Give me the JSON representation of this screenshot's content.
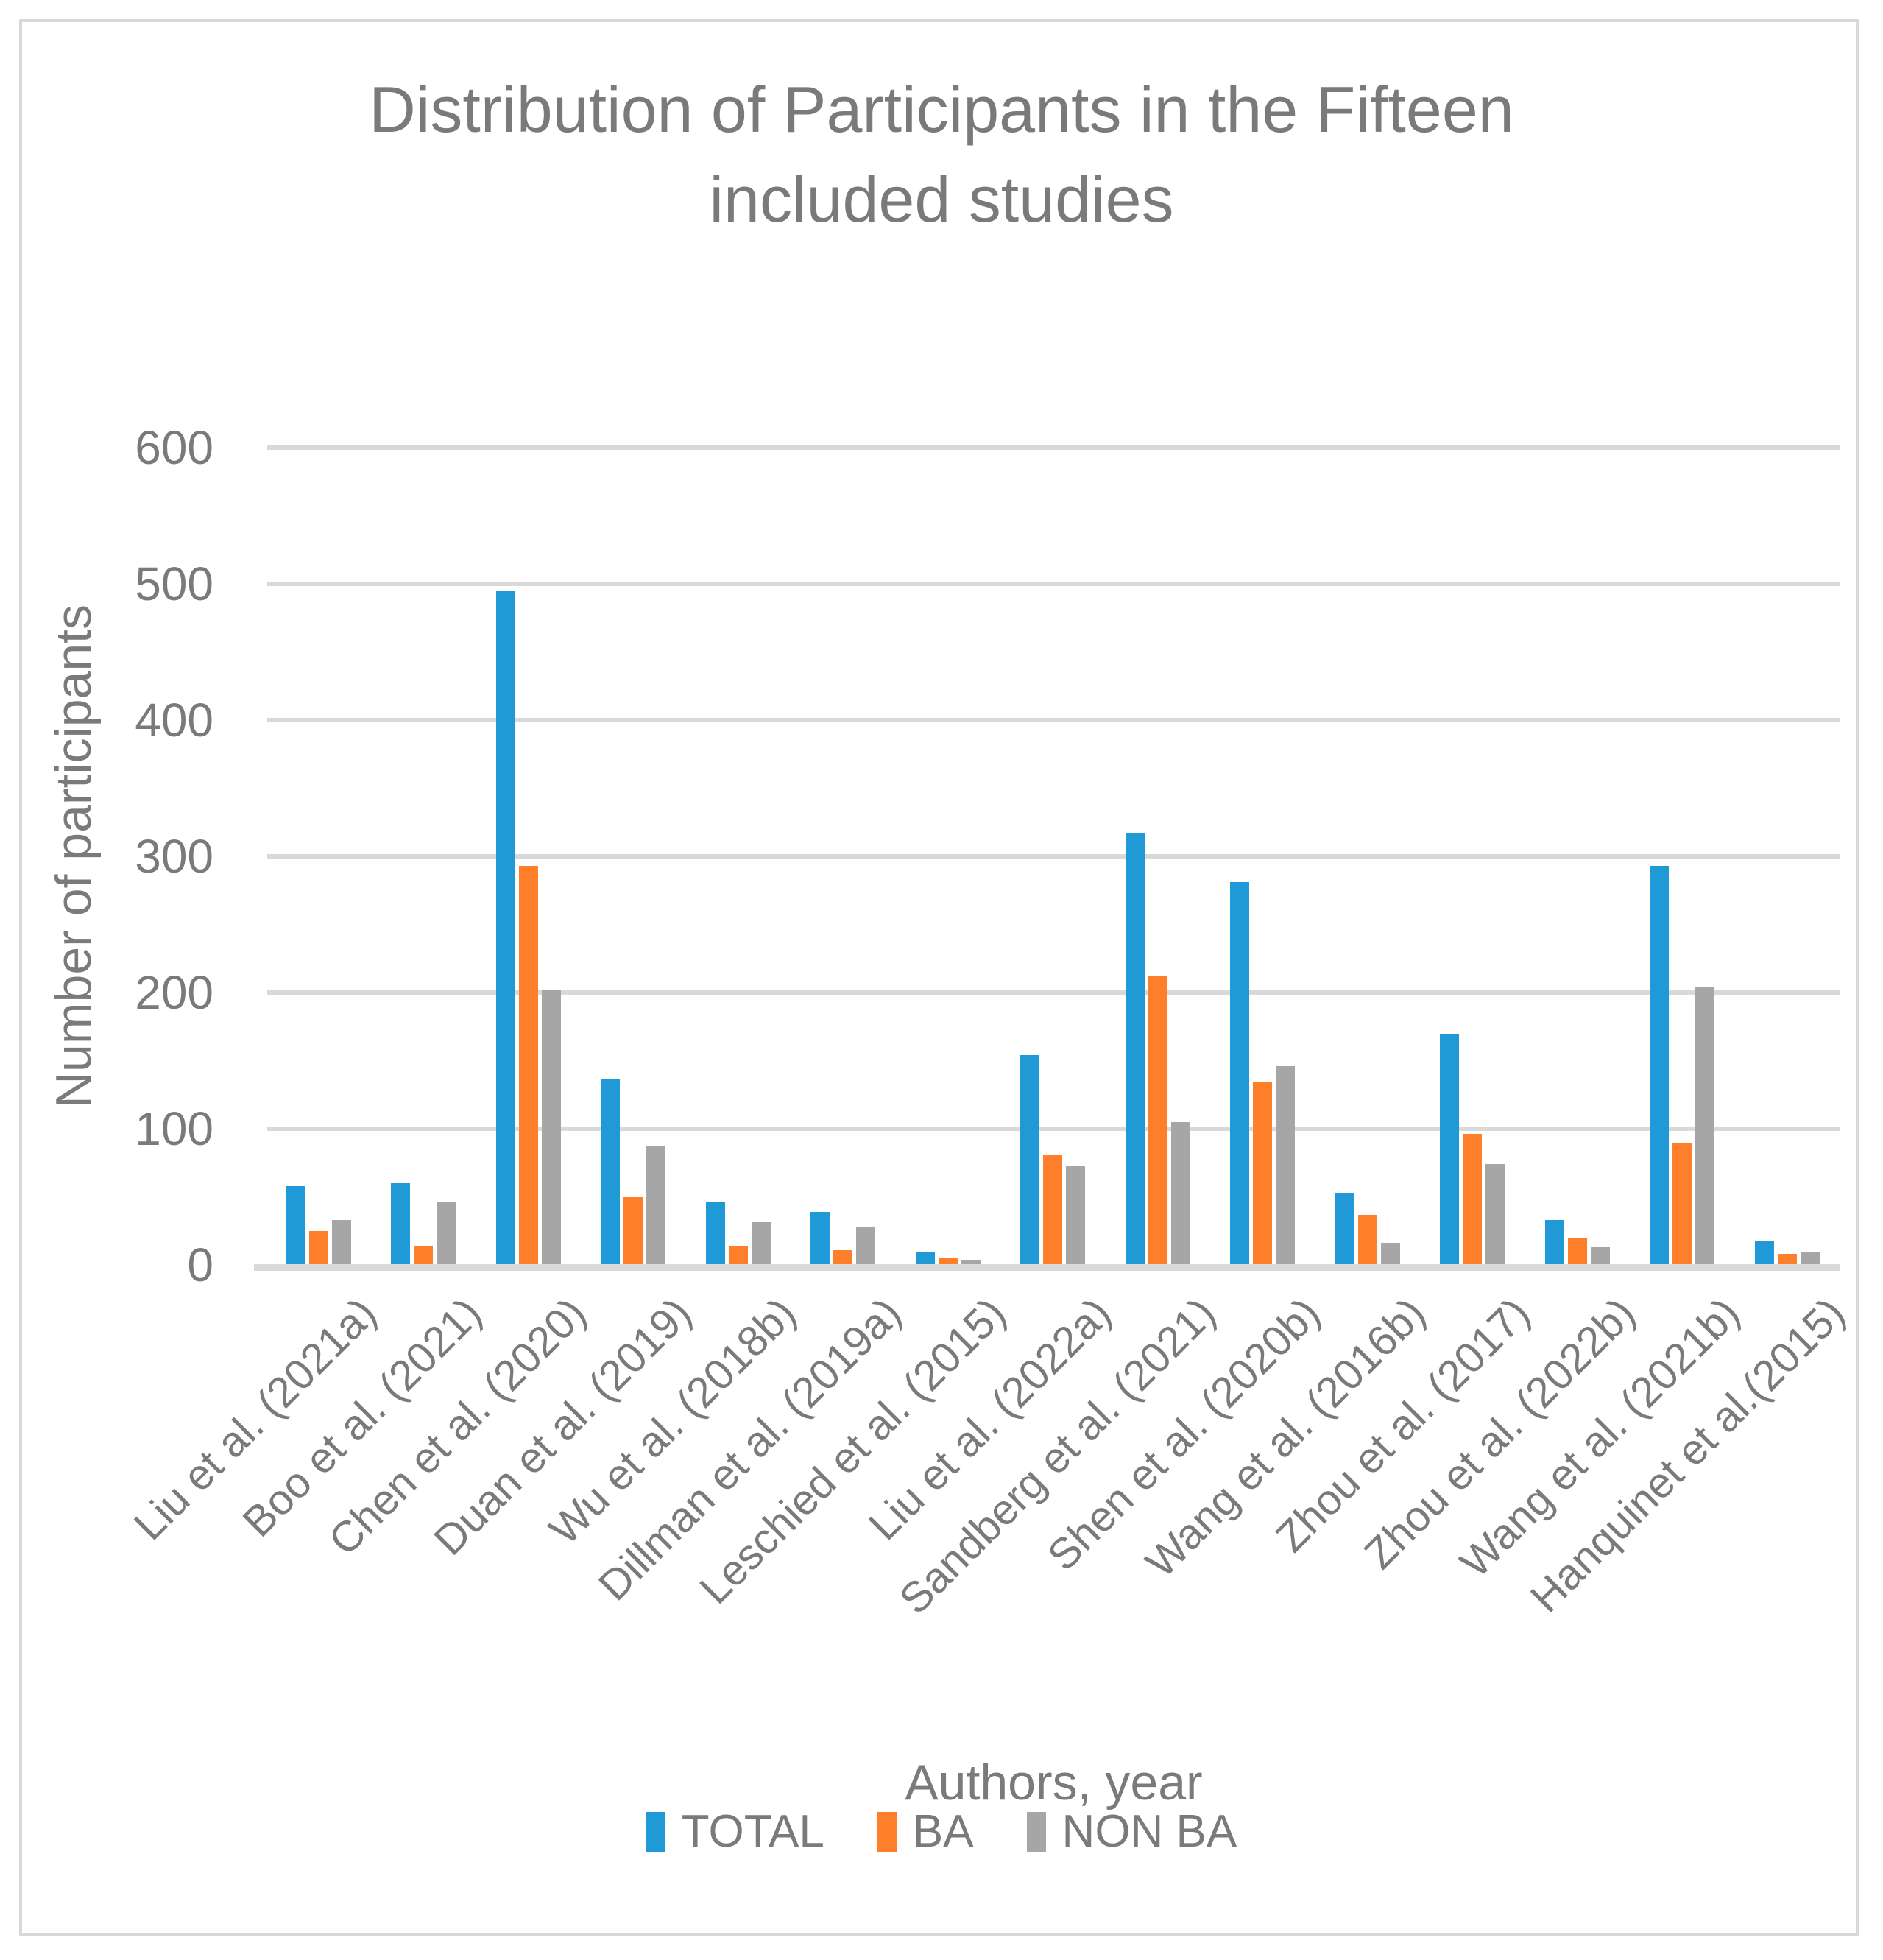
{
  "chart_data": {
    "type": "bar",
    "title": "Distribution of Participants in the Fifteen included studies",
    "title_lines": [
      "Distribution of Participants in the Fifteen",
      "included studies"
    ],
    "xlabel": "Authors, year",
    "ylabel": "Number of participants",
    "ylim": [
      0,
      600
    ],
    "ytick_interval": 100,
    "yticks": [
      600,
      500,
      400,
      300,
      200,
      100,
      0
    ],
    "grid": true,
    "legend_position": "bottom",
    "categories": [
      "Liu et al. (2021a)",
      "Boo et al. (2021)",
      "Chen et al. (2020)",
      "Duan et al. (2019)",
      "Wu et al. (2018b)",
      "Dillman et al. (2019a)",
      "Leschied et al. (2015)",
      "Liu et al. (2022a)",
      "Sandberg et al. (2021)",
      "Shen et al. (2020b)",
      "Wang et al. (2016b)",
      "Zhou et al. (2017)",
      "Zhou et al. (2022b)",
      "Wang et al. (2021b)",
      "Hanquinet et al.(2015)"
    ],
    "series": [
      {
        "name": "TOTAL",
        "color": "#209AD6",
        "values": [
          58,
          60,
          495,
          137,
          46,
          39,
          10,
          154,
          317,
          281,
          53,
          170,
          33,
          293,
          18
        ]
      },
      {
        "name": "BA",
        "color": "#FF7E29",
        "values": [
          25,
          14,
          293,
          50,
          14,
          11,
          5,
          81,
          212,
          134,
          37,
          96,
          20,
          89,
          8
        ]
      },
      {
        "name": "NON BA",
        "color": "#A6A6A6",
        "values": [
          33,
          46,
          202,
          87,
          32,
          28,
          4,
          73,
          105,
          146,
          16,
          74,
          13,
          204,
          9
        ]
      }
    ],
    "colors": {
      "gridline": "#d9d9d9",
      "axis_line": "#d9d9d9",
      "text": "#7a7a7a",
      "background": "#ffffff",
      "frame_border": "#d9d9d9"
    }
  }
}
